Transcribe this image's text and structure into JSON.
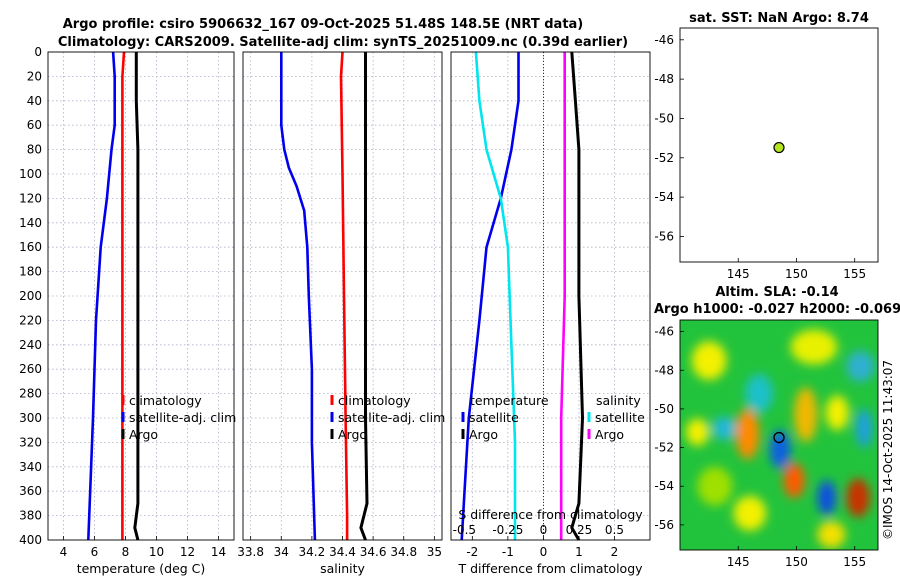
{
  "figure": {
    "title_line1": "Argo profile: csiro 5906632_167 09-Oct-2025 51.48S 148.5E (NRT data)",
    "title_line2": "Climatology: CARS2009. Satellite-adj clim: synTS_20251009.nc (0.39d earlier)",
    "credit": "©IMOS 14-Oct-2025 11:43:07"
  },
  "colors": {
    "climatology": "#ff0000",
    "satellite": "#0000ee",
    "argo": "#000000",
    "temp_diff": "#00e5ee",
    "sal_diff": "#ff00ff",
    "grid": "#b0b0c8"
  },
  "chart_data": [
    {
      "id": "temperature",
      "type": "line",
      "xlabel": "temperature (deg C)",
      "xlim": [
        3,
        15
      ],
      "ylim": [
        0,
        400
      ],
      "xticks": [
        "4",
        "6",
        "8",
        "10",
        "12",
        "14"
      ],
      "xtick_values": [
        4,
        6,
        8,
        10,
        12,
        14
      ],
      "yticks": [
        "0",
        "20",
        "40",
        "60",
        "80",
        "100",
        "120",
        "140",
        "160",
        "180",
        "200",
        "220",
        "240",
        "260",
        "280",
        "300",
        "320",
        "340",
        "360",
        "380",
        "400"
      ],
      "legend": [
        "climatology",
        "satellite-adj. clim",
        "Argo"
      ],
      "series": [
        {
          "name": "climatology",
          "color": "#ff0000",
          "points": [
            [
              7.9,
              0
            ],
            [
              7.8,
              20
            ],
            [
              7.8,
              60
            ],
            [
              7.8,
              100
            ],
            [
              7.8,
              200
            ],
            [
              7.8,
              300
            ],
            [
              7.8,
              400
            ]
          ]
        },
        {
          "name": "satellite-adj. clim",
          "color": "#0000ee",
          "points": [
            [
              7.2,
              0
            ],
            [
              7.3,
              20
            ],
            [
              7.3,
              60
            ],
            [
              7.1,
              80
            ],
            [
              6.8,
              120
            ],
            [
              6.4,
              160
            ],
            [
              6.1,
              220
            ],
            [
              5.9,
              300
            ],
            [
              5.6,
              400
            ]
          ]
        },
        {
          "name": "Argo",
          "color": "#000000",
          "points": [
            [
              8.7,
              0
            ],
            [
              8.7,
              40
            ],
            [
              8.8,
              80
            ],
            [
              8.8,
              200
            ],
            [
              8.8,
              300
            ],
            [
              8.8,
              370
            ],
            [
              8.6,
              390
            ],
            [
              8.8,
              400
            ]
          ]
        }
      ]
    },
    {
      "id": "salinity",
      "type": "line",
      "xlabel": "salinity",
      "xlim": [
        33.75,
        35.05
      ],
      "ylim": [
        0,
        400
      ],
      "xticks": [
        "33.8",
        "34",
        "34.2",
        "34.4",
        "34.6",
        "34.8",
        "35"
      ],
      "xtick_values": [
        33.8,
        34,
        34.2,
        34.4,
        34.6,
        34.8,
        35
      ],
      "legend": [
        "climatology",
        "satellite-adj. clim",
        "Argo"
      ],
      "series": [
        {
          "name": "climatology",
          "color": "#ff0000",
          "points": [
            [
              34.4,
              0
            ],
            [
              34.39,
              20
            ],
            [
              34.4,
              100
            ],
            [
              34.41,
              200
            ],
            [
              34.42,
              300
            ],
            [
              34.43,
              380
            ],
            [
              34.43,
              400
            ]
          ]
        },
        {
          "name": "satellite-adj. clim",
          "color": "#0000ee",
          "points": [
            [
              34.0,
              0
            ],
            [
              34.0,
              20
            ],
            [
              34.0,
              60
            ],
            [
              34.02,
              80
            ],
            [
              34.05,
              95
            ],
            [
              34.1,
              110
            ],
            [
              34.15,
              130
            ],
            [
              34.17,
              160
            ],
            [
              34.18,
              200
            ],
            [
              34.2,
              260
            ],
            [
              34.2,
              320
            ],
            [
              34.22,
              400
            ]
          ]
        },
        {
          "name": "Argo",
          "color": "#000000",
          "points": [
            [
              34.55,
              0
            ],
            [
              34.55,
              100
            ],
            [
              34.55,
              300
            ],
            [
              34.56,
              370
            ],
            [
              34.52,
              390
            ],
            [
              34.55,
              400
            ]
          ]
        }
      ]
    },
    {
      "id": "difference",
      "type": "line",
      "xlabel": "T difference from climatology",
      "xlabel2": "S difference from climatology",
      "xlim": [
        -2.6,
        3.0
      ],
      "ylim": [
        0,
        400
      ],
      "xticks": [
        "-2",
        "-1",
        "0",
        "1",
        "2"
      ],
      "xtick_values": [
        -2,
        -1,
        0,
        1,
        2
      ],
      "xticks2": [
        "-0.5",
        "-0.25",
        "0",
        "0.25",
        "0.5"
      ],
      "xtick2_values": [
        -2,
        -1,
        0,
        1,
        2
      ],
      "legend_temperature": {
        "heading": "temperature",
        "items": [
          "satellite",
          "Argo"
        ]
      },
      "legend_salinity": {
        "heading": "salinity",
        "items": [
          "satellite",
          "Argo"
        ]
      },
      "series": [
        {
          "name": "T satellite",
          "color": "#0000ee",
          "points": [
            [
              -0.7,
              0
            ],
            [
              -0.7,
              40
            ],
            [
              -0.9,
              80
            ],
            [
              -1.2,
              120
            ],
            [
              -1.6,
              160
            ],
            [
              -1.8,
              220
            ],
            [
              -2.1,
              300
            ],
            [
              -2.3,
              400
            ]
          ]
        },
        {
          "name": "T Argo",
          "color": "#000000",
          "points": [
            [
              0.8,
              0
            ],
            [
              0.9,
              40
            ],
            [
              1.0,
              80
            ],
            [
              1.0,
              200
            ],
            [
              1.1,
              300
            ],
            [
              1.0,
              370
            ],
            [
              0.8,
              390
            ],
            [
              1.0,
              400
            ]
          ]
        },
        {
          "name": "S satellite",
          "color": "#00e5ee",
          "points": [
            [
              -1.9,
              0
            ],
            [
              -1.8,
              40
            ],
            [
              -1.6,
              80
            ],
            [
              -1.2,
              120
            ],
            [
              -1.0,
              160
            ],
            [
              -0.9,
              240
            ],
            [
              -0.8,
              320
            ],
            [
              -0.8,
              400
            ]
          ]
        },
        {
          "name": "S Argo",
          "color": "#ff00ff",
          "points": [
            [
              0.6,
              0
            ],
            [
              0.6,
              100
            ],
            [
              0.6,
              200
            ],
            [
              0.5,
              300
            ],
            [
              0.5,
              380
            ],
            [
              0.5,
              400
            ]
          ]
        }
      ]
    },
    {
      "id": "sst_map",
      "type": "scatter",
      "title": "sat. SST: NaN Argo: 8.74",
      "xlim": [
        140,
        157
      ],
      "ylim": [
        -57.3,
        -45.4
      ],
      "xticks": [
        "145",
        "150",
        "155"
      ],
      "xtick_values": [
        145,
        150,
        155
      ],
      "yticks": [
        "-46",
        "-48",
        "-50",
        "-52",
        "-54",
        "-56"
      ],
      "ytick_values": [
        -46,
        -48,
        -50,
        -52,
        -54,
        -56
      ],
      "points": [
        {
          "lon": 148.5,
          "lat": -51.48,
          "color": "#b5e61d"
        }
      ]
    },
    {
      "id": "sla_map",
      "type": "heatmap",
      "title_line1": "Altim. SLA: -0.14",
      "title_line2": "Argo h1000: -0.027 h2000: -0.069",
      "xlim": [
        140,
        157
      ],
      "ylim": [
        -57.3,
        -45.4
      ],
      "xticks": [
        "145",
        "150",
        "155"
      ],
      "xtick_values": [
        145,
        150,
        155
      ],
      "yticks": [
        "-46",
        "-48",
        "-50",
        "-52",
        "-54",
        "-56"
      ],
      "ytick_values": [
        -46,
        -48,
        -50,
        -52,
        -54,
        -56
      ],
      "marker": {
        "lon": 148.5,
        "lat": -51.48
      },
      "base_color": "#22c33c",
      "blobs": [
        {
          "lon": 142.5,
          "lat": -47.5,
          "rx": 1.5,
          "ry": 1.0,
          "color": "#f3f000"
        },
        {
          "lon": 151.5,
          "lat": -46.8,
          "rx": 2.0,
          "ry": 0.9,
          "color": "#e8f000"
        },
        {
          "lon": 155.5,
          "lat": -47.8,
          "rx": 1.2,
          "ry": 0.8,
          "color": "#2fb0d0"
        },
        {
          "lon": 146.8,
          "lat": -49.2,
          "rx": 1.2,
          "ry": 1.0,
          "color": "#1ac0c8"
        },
        {
          "lon": 145.8,
          "lat": -51.3,
          "rx": 1.0,
          "ry": 1.3,
          "color": "#ff8a00"
        },
        {
          "lon": 141.5,
          "lat": -51.2,
          "rx": 1.0,
          "ry": 0.7,
          "color": "#f3f000"
        },
        {
          "lon": 143.8,
          "lat": -51.0,
          "rx": 1.0,
          "ry": 0.6,
          "color": "#20b8d8"
        },
        {
          "lon": 150.8,
          "lat": -50.3,
          "rx": 1.0,
          "ry": 1.4,
          "color": "#f0b800"
        },
        {
          "lon": 153.5,
          "lat": -50.2,
          "rx": 1.0,
          "ry": 0.9,
          "color": "#f3f000"
        },
        {
          "lon": 155.8,
          "lat": -51.0,
          "rx": 0.7,
          "ry": 1.0,
          "color": "#1fa0e0"
        },
        {
          "lon": 148.6,
          "lat": -52.1,
          "rx": 0.9,
          "ry": 1.0,
          "color": "#1060e0"
        },
        {
          "lon": 149.8,
          "lat": -53.7,
          "rx": 0.9,
          "ry": 0.9,
          "color": "#ff5a00"
        },
        {
          "lon": 152.6,
          "lat": -54.6,
          "rx": 0.8,
          "ry": 0.9,
          "color": "#1050e0"
        },
        {
          "lon": 155.3,
          "lat": -54.6,
          "rx": 1.0,
          "ry": 1.0,
          "color": "#c83000"
        },
        {
          "lon": 146.0,
          "lat": -55.4,
          "rx": 1.4,
          "ry": 0.9,
          "color": "#f3f000"
        },
        {
          "lon": 153.0,
          "lat": -56.5,
          "rx": 1.2,
          "ry": 0.7,
          "color": "#f3e000"
        },
        {
          "lon": 143.0,
          "lat": -54.0,
          "rx": 1.5,
          "ry": 1.0,
          "color": "#9fe000"
        }
      ]
    }
  ]
}
